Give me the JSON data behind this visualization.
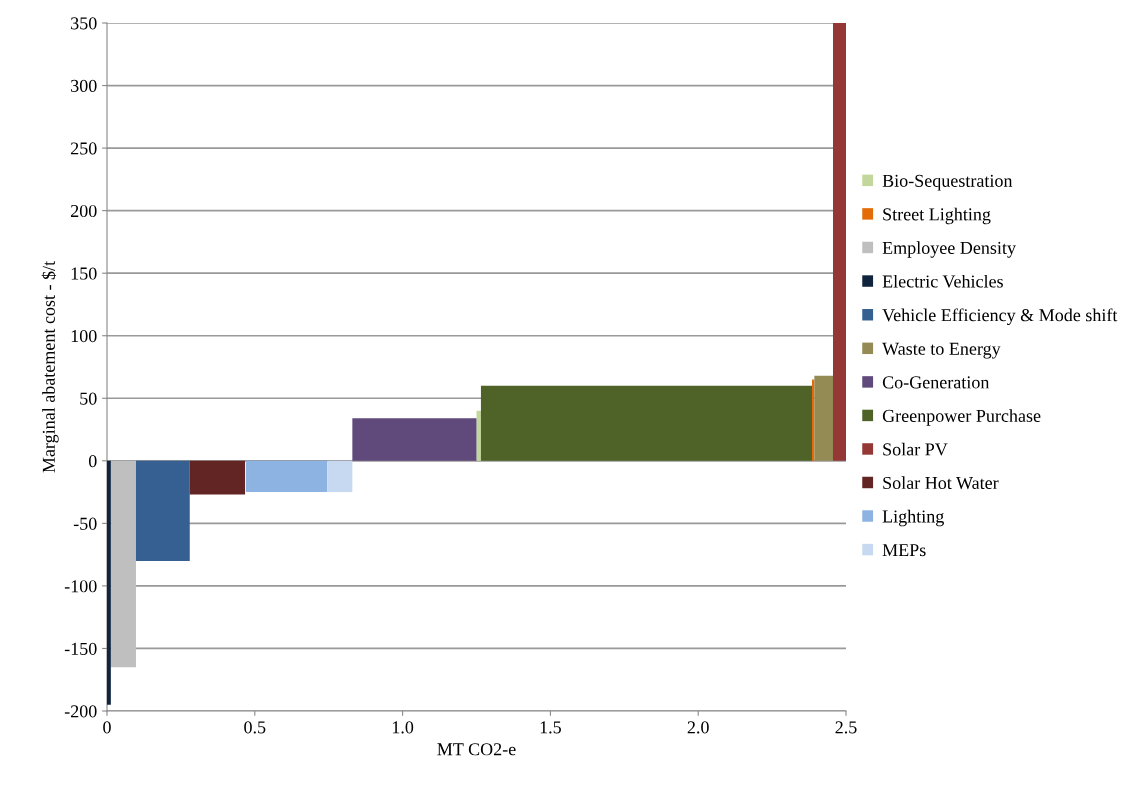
{
  "chart_data": {
    "type": "area",
    "xlabel": "MT CO2-e",
    "ylabel": "Marginal abatement cost - $/t",
    "xlim": [
      0,
      2.5
    ],
    "xticks": [
      {
        "value": 0,
        "label": "0"
      },
      0.5,
      {
        "value": 1,
        "label": "1.0"
      },
      1.5,
      {
        "value": 2,
        "label": "2.0"
      },
      2.5
    ],
    "ylim": [
      -200,
      350
    ],
    "yticks": [
      -200,
      -150,
      -100,
      -50,
      0,
      50,
      100,
      150,
      200,
      250,
      300,
      350
    ],
    "grid": "y",
    "legend": "right",
    "series": [
      {
        "name": "Bio-Sequestration",
        "color": "#c3d69b",
        "x": [
          1.25,
          1.265
        ],
        "values": [
          40,
          40
        ]
      },
      {
        "name": "Street Lighting",
        "color": "#e36c09",
        "x": [
          2.385,
          2.393
        ],
        "values": [
          65,
          65
        ]
      },
      {
        "name": "Employee Density",
        "color": "#bfbfbf",
        "x": [
          0.013,
          0.098
        ],
        "values": [
          -165,
          -165
        ]
      },
      {
        "name": "Electric Vehicles",
        "color": "#10243e",
        "x": [
          0,
          0.013
        ],
        "values": [
          -195,
          -195
        ]
      },
      {
        "name": "Vehicle Efficiency & Mode shift",
        "color": "#366092",
        "x": [
          0.098,
          0.28
        ],
        "values": [
          -80,
          -80
        ]
      },
      {
        "name": "Waste to Energy",
        "color": "#948a54",
        "x": [
          2.393,
          2.456
        ],
        "values": [
          68,
          68
        ]
      },
      {
        "name": "Co-Generation",
        "color": "#604a7b",
        "x": [
          0.83,
          1.25
        ],
        "values": [
          34,
          34
        ]
      },
      {
        "name": "Greenpower Purchase",
        "color": "#4f6228",
        "x": [
          1.265,
          2.385
        ],
        "values": [
          60,
          60
        ]
      },
      {
        "name": "Solar PV",
        "color": "#953735",
        "x": [
          2.456,
          2.5
        ],
        "values": [
          350,
          350
        ]
      },
      {
        "name": "Solar Hot Water",
        "color": "#632523",
        "x": [
          0.28,
          0.467
        ],
        "values": [
          -27,
          -27
        ]
      },
      {
        "name": "Lighting",
        "color": "#8db3e2",
        "x": [
          0.47,
          0.745
        ],
        "values": [
          -25,
          -25
        ]
      },
      {
        "name": "MEPs",
        "color": "#c6d9f0",
        "x": [
          0.745,
          0.83
        ],
        "values": [
          -25,
          -25
        ]
      }
    ]
  }
}
